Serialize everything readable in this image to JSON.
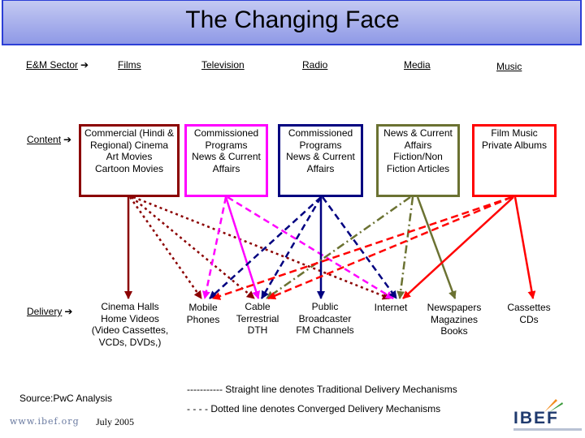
{
  "title": "The Changing Face",
  "headers": {
    "sector": "E&M Sector",
    "films": "Films",
    "television": "Television",
    "radio": "Radio",
    "media": "Media",
    "music": "Music"
  },
  "row_labels": {
    "content": "Content",
    "delivery": "Delivery"
  },
  "content_boxes": {
    "films": [
      "Commercial (Hindi &",
      "Regional) Cinema",
      "Art Movies",
      "Cartoon Movies"
    ],
    "television": [
      "Commissioned",
      "Programs",
      "News & Current",
      "Affairs"
    ],
    "radio": [
      "Commissioned",
      "Programs",
      "News & Current",
      "Affairs"
    ],
    "media": [
      "News & Current",
      "Affairs",
      "Fiction/Non",
      "Fiction Articles"
    ],
    "music": [
      "Film Music",
      "Private Albums"
    ]
  },
  "delivery_items": {
    "cinema": [
      "Cinema Halls",
      "Home Videos",
      "(Video Cassettes,",
      "VCDs, DVDs,)"
    ],
    "mobile": [
      "Mobile",
      "Phones"
    ],
    "cable": [
      "Cable",
      "Terrestrial",
      "DTH"
    ],
    "public": [
      "Public",
      "Broadcaster",
      "FM Channels"
    ],
    "internet": [
      "Internet"
    ],
    "newspapers": [
      "Newspapers",
      "Magazines",
      "Books"
    ],
    "cassettes": [
      "Cassettes",
      "CDs"
    ]
  },
  "legend": {
    "solid": "----------- Straight line denotes Traditional Delivery Mechanisms",
    "dotted": "- - - - Dotted line denotes Converged  Delivery Mechanisms"
  },
  "source": "Source:PwC Analysis",
  "footer": {
    "url": "www.ibef.org",
    "date": "July 2005"
  },
  "logo": {
    "name": "IBEF"
  },
  "colors": {
    "films": "#8b0000",
    "television": "#ff00ff",
    "radio": "#000080",
    "media": "#6b7232",
    "music": "#ff0000",
    "title_bar": "#a8b0ee",
    "title_border": "#2c3fd6"
  }
}
